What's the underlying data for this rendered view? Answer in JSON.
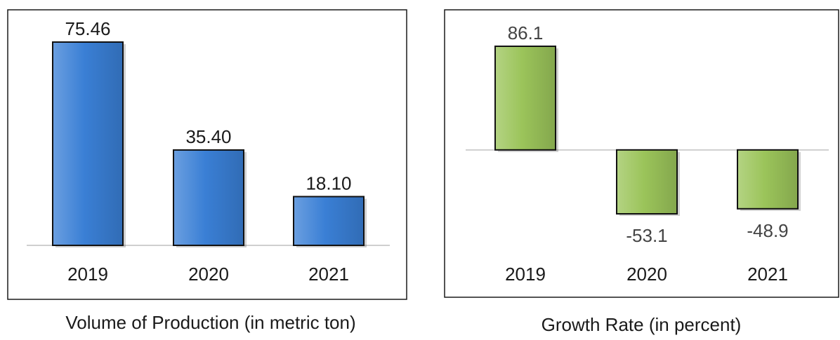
{
  "chart_data": [
    {
      "type": "bar",
      "title": "Volume of Production (in metric ton)",
      "categories": [
        "2019",
        "2020",
        "2021"
      ],
      "values": [
        75.46,
        35.4,
        18.1
      ],
      "value_labels": [
        "75.46",
        "35.40",
        "18.10"
      ],
      "ylim": [
        0,
        75.46
      ],
      "grid": false,
      "color": "#3a7fd5"
    },
    {
      "type": "bar",
      "title": "Growth Rate (in percent)",
      "categories": [
        "2019",
        "2020",
        "2021"
      ],
      "values": [
        86.1,
        -53.1,
        -48.9
      ],
      "value_labels": [
        "86.1",
        "-53.1",
        "-48.9"
      ],
      "ylim": [
        -53.1,
        86.1
      ],
      "grid": false,
      "color": "#9bc45a"
    }
  ]
}
